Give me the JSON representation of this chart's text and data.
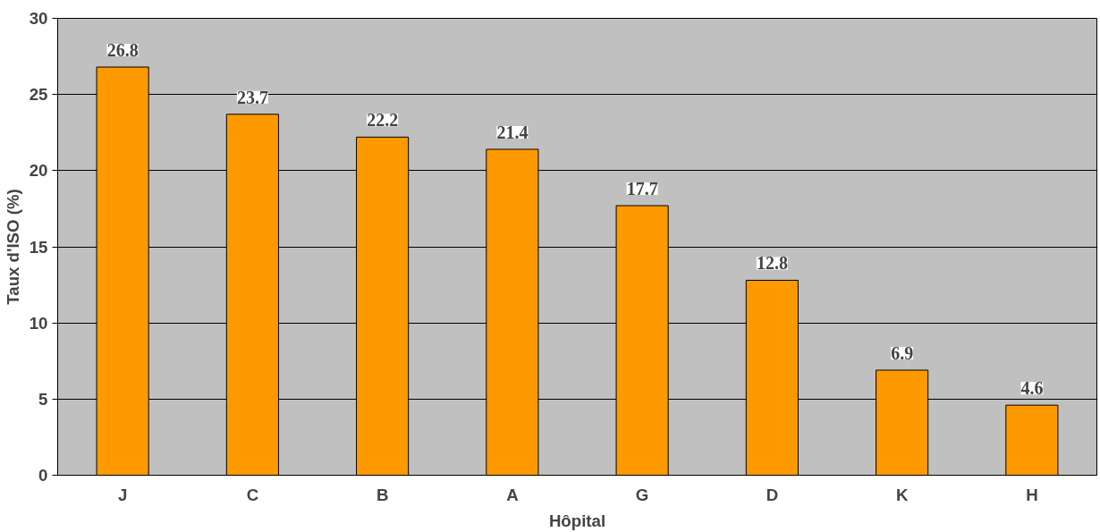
{
  "chart_data": {
    "type": "bar",
    "xlabel": "Hôpital",
    "ylabel": "Taux d'ISO (%)",
    "categories": [
      "J",
      "C",
      "B",
      "A",
      "G",
      "D",
      "K",
      "H"
    ],
    "values": [
      26.8,
      23.7,
      22.2,
      21.4,
      17.7,
      12.8,
      6.9,
      4.6
    ],
    "color": "#ff9900",
    "ylim": [
      0,
      30
    ],
    "yticks": [
      0,
      5,
      10,
      15,
      20,
      25,
      30
    ],
    "grid": "y",
    "data_labels": true
  }
}
